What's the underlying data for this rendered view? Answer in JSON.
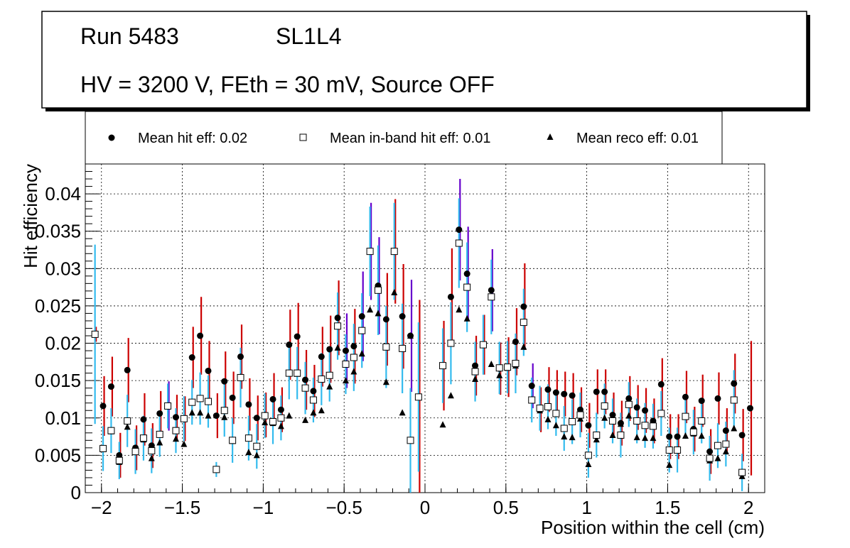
{
  "chart_data": {
    "type": "scatter",
    "title_box": {
      "run_label": "Run 5483",
      "layer_label": "SL1L4",
      "conditions": "HV = 3200 V, FEth = 30 mV, Source OFF"
    },
    "legend": {
      "placement": "top",
      "entries": [
        {
          "label": "Mean hit  eff: 0.02",
          "marker": "circle-filled"
        },
        {
          "label": "Mean in-band hit eff: 0.01",
          "marker": "square-open"
        },
        {
          "label": "Mean reco eff: 0.01",
          "marker": "triangle-filled"
        }
      ]
    },
    "xlabel": "Position within the cell (cm)",
    "ylabel": "Hit efficiency",
    "xlim": [
      -2.1,
      2.1
    ],
    "ylim": [
      0,
      0.044
    ],
    "xticks": [
      -2,
      -1.5,
      -1,
      -0.5,
      0,
      0.5,
      1,
      1.5,
      2
    ],
    "xtick_labels": [
      "−2",
      "−1.5",
      "−1",
      "−0.5",
      "0",
      "0.5",
      "1",
      "1.5",
      "2"
    ],
    "yticks": [
      0,
      0.005,
      0.01,
      0.015,
      0.02,
      0.025,
      0.03,
      0.035,
      0.04
    ],
    "ytick_labels": [
      "0",
      "0.005",
      "0.01",
      "0.015",
      "0.02",
      "0.025",
      "0.03",
      "0.035",
      "0.04"
    ],
    "grid": true,
    "colors": {
      "hit_err": "#cc0000",
      "hit_err_alt": "#6600cc",
      "inband_err": "#33bbee",
      "marker": "#000000"
    },
    "x": [
      -2.04,
      -1.99,
      -1.94,
      -1.89,
      -1.84,
      -1.79,
      -1.74,
      -1.69,
      -1.64,
      -1.59,
      -1.54,
      -1.49,
      -1.44,
      -1.39,
      -1.34,
      -1.29,
      -1.24,
      -1.19,
      -1.14,
      -1.09,
      -1.04,
      -0.99,
      -0.94,
      -0.89,
      -0.84,
      -0.79,
      -0.74,
      -0.69,
      -0.64,
      -0.59,
      -0.54,
      -0.49,
      -0.44,
      -0.39,
      -0.34,
      -0.29,
      -0.24,
      -0.19,
      -0.14,
      -0.09,
      -0.04,
      0.01,
      0.06,
      0.11,
      0.16,
      0.21,
      0.26,
      0.31,
      0.36,
      0.41,
      0.46,
      0.51,
      0.56,
      0.61,
      0.66,
      0.71,
      0.76,
      0.81,
      0.86,
      0.91,
      0.96,
      1.01,
      1.06,
      1.11,
      1.16,
      1.21,
      1.26,
      1.31,
      1.36,
      1.41,
      1.46,
      1.51,
      1.56,
      1.61,
      1.66,
      1.71,
      1.76,
      1.81,
      1.86,
      1.91,
      1.96,
      2.01
    ],
    "series": [
      {
        "name": "Mean hit eff",
        "marker": "circle-filled",
        "values": [
          0.0212,
          0.0116,
          0.0142,
          0.005,
          0.0164,
          0.006,
          0.0098,
          0.0063,
          0.0106,
          0.0116,
          0.0101,
          0.0099,
          0.0181,
          0.021,
          0.0163,
          0.0103,
          0.0149,
          0.0127,
          0.0182,
          0.0118,
          0.01,
          0.0104,
          0.0125,
          0.0111,
          0.0198,
          0.0209,
          0.0151,
          0.0136,
          0.0182,
          0.0192,
          0.0234,
          0.019,
          0.0196,
          0.0236,
          0.0323,
          0.0277,
          0.0232,
          0.0323,
          0.0236,
          0.021,
          0.0128,
          null,
          null,
          0.017,
          0.0262,
          0.0352,
          0.0293,
          0.017,
          0.0198,
          0.0271,
          0.0166,
          0.0168,
          0.0202,
          0.0249,
          0.0143,
          0.0111,
          0.0138,
          0.0134,
          0.0132,
          0.013,
          0.0111,
          0.009,
          0.0135,
          0.0135,
          0.0104,
          0.0093,
          0.0126,
          0.0114,
          0.011,
          0.0096,
          0.0145,
          0.0075,
          0.0075,
          0.0128,
          0.0085,
          0.0123,
          0.0055,
          0.0126,
          0.0083,
          0.0146,
          0.0077,
          0.0113
        ],
        "err": [
          0.001,
          0.004,
          0.004,
          0.003,
          0.0043,
          0.003,
          0.0035,
          0.003,
          0.003,
          0.0033,
          0.003,
          0.003,
          0.0041,
          0.0052,
          0.004,
          0.003,
          0.004,
          0.0035,
          0.0043,
          0.0035,
          0.003,
          0.003,
          0.0035,
          0.003,
          0.0047,
          0.0045,
          0.004,
          0.0035,
          0.004,
          0.0045,
          0.005,
          0.005,
          0.005,
          0.006,
          0.0065,
          0.0065,
          0.0062,
          0.007,
          0.007,
          0.0075,
          0.013,
          null,
          null,
          0.006,
          0.0065,
          0.0068,
          0.0063,
          0.004,
          0.004,
          0.0055,
          0.0035,
          0.004,
          0.0045,
          0.0058,
          0.003,
          0.003,
          0.003,
          0.003,
          0.003,
          0.003,
          0.003,
          0.003,
          0.003,
          0.003,
          0.003,
          0.003,
          0.003,
          0.003,
          0.003,
          0.003,
          0.0035,
          0.003,
          0.003,
          0.0035,
          0.003,
          0.0035,
          0.003,
          0.0035,
          0.003,
          0.004,
          0.0035,
          0.009
        ]
      },
      {
        "name": "Mean in-band hit eff",
        "marker": "square-open",
        "values": [
          0.0212,
          0.0059,
          0.0083,
          0.0043,
          0.0096,
          0.0055,
          0.0073,
          0.0056,
          0.0078,
          0.0116,
          0.0083,
          0.0099,
          0.0121,
          0.0126,
          0.0122,
          0.0031,
          0.011,
          0.007,
          0.0154,
          0.0073,
          0.0062,
          0.0103,
          0.0095,
          0.01,
          0.016,
          0.016,
          0.014,
          0.0124,
          0.0152,
          0.0157,
          0.0223,
          0.0172,
          0.0181,
          0.0217,
          0.0323,
          0.0271,
          0.0195,
          0.0323,
          0.0193,
          0.007,
          0.0128,
          null,
          null,
          0.017,
          0.02,
          0.0334,
          0.0275,
          0.0162,
          0.0198,
          0.0262,
          0.0167,
          0.0168,
          0.0173,
          0.0228,
          0.0124,
          0.0113,
          0.0115,
          0.0106,
          0.0086,
          0.0095,
          0.0104,
          0.005,
          0.0077,
          0.0116,
          0.0096,
          0.0077,
          0.0118,
          0.0096,
          0.009,
          0.0089,
          0.0106,
          0.0057,
          0.0057,
          0.0102,
          0.0081,
          0.0096,
          0.0046,
          0.0063,
          0.0065,
          0.0124,
          0.0027,
          null
        ],
        "err": [
          0.012,
          0.003,
          0.003,
          0.0025,
          0.0035,
          0.003,
          0.003,
          0.003,
          0.003,
          0.003,
          0.003,
          0.003,
          0.003,
          0.0035,
          0.0035,
          0.001,
          0.0035,
          0.003,
          0.004,
          0.003,
          0.003,
          0.003,
          0.003,
          0.003,
          0.0035,
          0.0035,
          0.0035,
          0.003,
          0.0035,
          0.0035,
          0.0045,
          0.004,
          0.0045,
          0.005,
          0.006,
          0.006,
          0.0055,
          0.0065,
          0.006,
          0.007,
          0.01,
          null,
          null,
          0.005,
          0.0055,
          0.006,
          0.006,
          0.004,
          0.004,
          0.005,
          0.0035,
          0.0035,
          0.004,
          0.0045,
          0.003,
          0.003,
          0.003,
          0.003,
          0.003,
          0.003,
          0.003,
          0.003,
          0.003,
          0.003,
          0.003,
          0.003,
          0.003,
          0.003,
          0.003,
          0.003,
          0.003,
          0.003,
          0.003,
          0.003,
          0.003,
          0.003,
          0.003,
          0.003,
          0.003,
          0.004,
          0.0025,
          null
        ]
      },
      {
        "name": "Mean reco eff",
        "marker": "triangle-filled",
        "values": [
          0.0212,
          0.0058,
          0.0082,
          0.0041,
          0.0088,
          0.0054,
          0.0071,
          0.0046,
          0.0067,
          0.0116,
          0.0072,
          0.0065,
          0.0107,
          0.0107,
          0.0103,
          0.0031,
          0.0101,
          0.0069,
          0.0155,
          0.0054,
          0.005,
          0.0094,
          0.0093,
          0.0089,
          0.0103,
          0.0159,
          0.0097,
          0.0107,
          0.011,
          0.0142,
          0.0194,
          0.015,
          0.0162,
          0.0186,
          0.0245,
          0.024,
          0.0148,
          0.0268,
          0.0107,
          0.021,
          0.0128,
          null,
          null,
          0.0091,
          0.013,
          0.0245,
          0.0233,
          0.0152,
          0.0198,
          0.0172,
          0.0157,
          0.0167,
          0.017,
          0.0195,
          0.0125,
          0.011,
          0.0098,
          0.009,
          0.0075,
          0.0074,
          0.0099,
          0.0038,
          0.0071,
          0.01,
          0.0077,
          0.0092,
          0.0103,
          0.0074,
          0.0073,
          0.0073,
          0.0106,
          0.0037,
          0.0057,
          0.0076,
          0.0079,
          0.0076,
          0.0043,
          0.0046,
          0.0055,
          0.0086,
          0.0022,
          null
        ]
      }
    ]
  }
}
